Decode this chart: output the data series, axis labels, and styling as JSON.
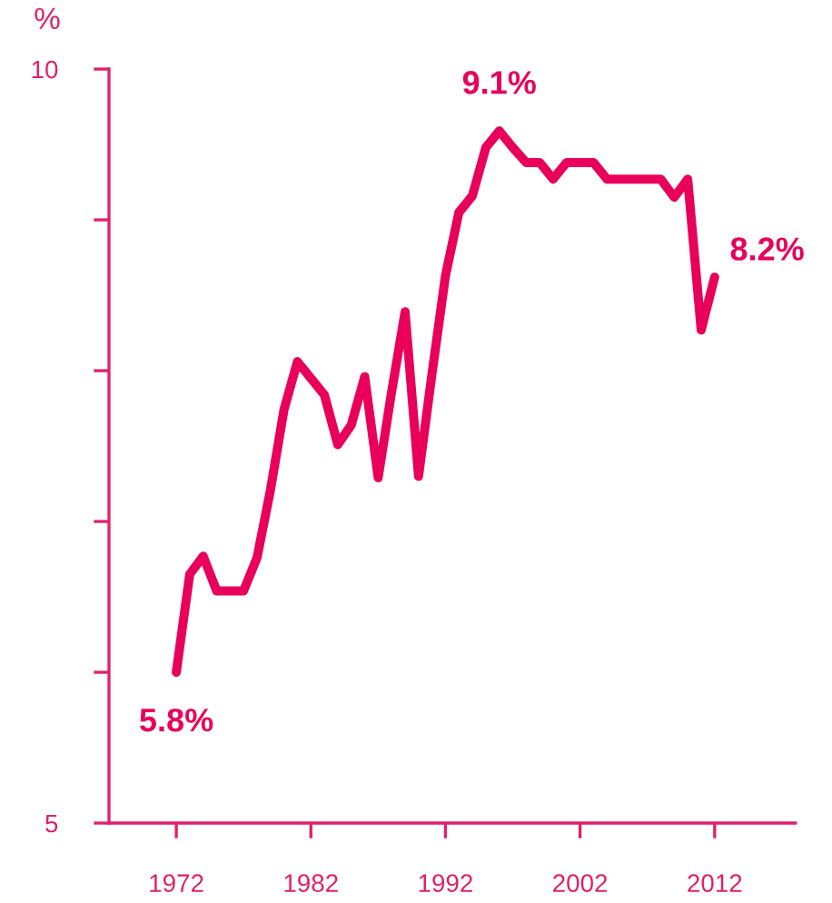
{
  "chart_data": {
    "type": "line",
    "ylabel": "%",
    "x": [
      1972,
      1973,
      1974,
      1975,
      1976,
      1977,
      1978,
      1979,
      1980,
      1981,
      1982,
      1983,
      1984,
      1985,
      1986,
      1987,
      1988,
      1989,
      1990,
      1991,
      1992,
      1993,
      1994,
      1995,
      1996,
      1997,
      1998,
      1999,
      2000,
      2001,
      2002,
      2003,
      2004,
      2005,
      2006,
      2007,
      2008,
      2009,
      2010,
      2011,
      2012
    ],
    "series": [
      {
        "color": "#e8005a",
        "values": [
          6.0,
          6.65,
          6.77,
          6.54,
          6.54,
          6.54,
          6.76,
          7.21,
          7.74,
          8.06,
          7.95,
          7.84,
          7.51,
          7.64,
          7.96,
          7.29,
          7.86,
          8.39,
          7.3,
          7.98,
          8.63,
          9.05,
          9.16,
          9.48,
          9.59,
          9.48,
          9.38,
          9.38,
          9.27,
          9.38,
          9.38,
          9.38,
          9.27,
          9.27,
          9.27,
          9.27,
          9.27,
          9.15,
          9.27,
          8.27,
          8.62
        ]
      }
    ],
    "annotations": [
      "5.8%",
      "9.1%",
      "8.2%"
    ],
    "xlim": [
      1967,
      2018
    ],
    "xticks": [
      1972,
      1982,
      1992,
      2002,
      2012
    ],
    "ylim": [
      5,
      10
    ],
    "yticks": [
      5,
      {
        "value": 6,
        "label": null
      },
      {
        "value": 7,
        "label": null
      },
      {
        "value": 8,
        "label": null
      },
      {
        "value": 9,
        "label": null
      },
      10
    ],
    "grid": false,
    "legend": false,
    "marker": "none",
    "line_style": "solid"
  }
}
